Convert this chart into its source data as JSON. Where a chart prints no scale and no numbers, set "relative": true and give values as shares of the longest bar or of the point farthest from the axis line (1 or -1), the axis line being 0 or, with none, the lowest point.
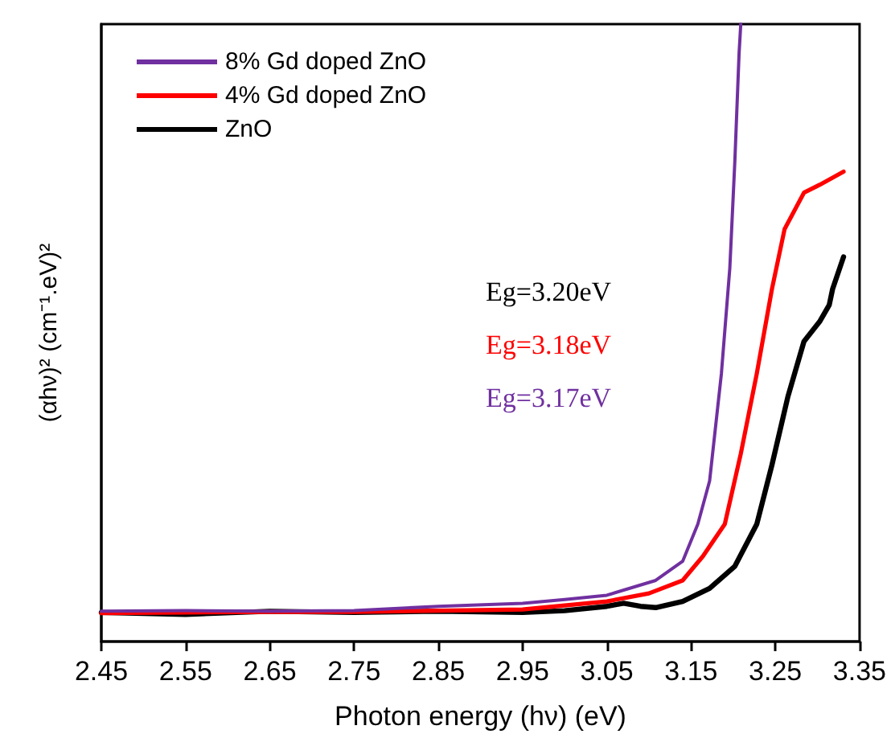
{
  "chart_data": {
    "type": "line",
    "xlabel": "Photon energy (hν) (eV)",
    "ylabel": "(αhν)² (cm⁻¹.eV)²",
    "relative": true,
    "xlim": [
      2.45,
      3.35
    ],
    "xticks": [
      2.45,
      2.55,
      2.65,
      2.75,
      2.85,
      2.95,
      3.05,
      3.15,
      3.25,
      3.35
    ],
    "grid": false,
    "legend": "top left",
    "marker": "none",
    "line_style": "solid",
    "series": [
      {
        "name": "8% Gd doped ZnO",
        "color": "#7030a0",
        "x": [
          2.45,
          2.55,
          2.65,
          2.75,
          2.85,
          2.95,
          3.0,
          3.05,
          3.108,
          3.14,
          3.158,
          3.172,
          3.186,
          3.196,
          3.202,
          3.207,
          3.209
        ],
        "values": [
          0.049,
          0.05,
          0.049,
          0.05,
          0.057,
          0.062,
          0.068,
          0.075,
          0.099,
          0.13,
          0.19,
          0.26,
          0.434,
          0.605,
          0.779,
          0.953,
          1.0
        ]
      },
      {
        "name": "4% Gd doped ZnO",
        "color": "#ff0000",
        "x": [
          2.45,
          2.55,
          2.65,
          2.75,
          2.85,
          2.95,
          3.05,
          3.1,
          3.14,
          3.164,
          3.19,
          3.209,
          3.228,
          3.246,
          3.261,
          3.284,
          3.303,
          3.331
        ],
        "values": [
          0.046,
          0.047,
          0.048,
          0.048,
          0.05,
          0.052,
          0.065,
          0.078,
          0.099,
          0.138,
          0.19,
          0.304,
          0.434,
          0.571,
          0.668,
          0.727,
          0.74,
          0.761
        ]
      },
      {
        "name": "ZnO",
        "color": "#000000",
        "x": [
          2.45,
          2.55,
          2.65,
          2.75,
          2.85,
          2.95,
          3.0,
          3.05,
          3.07,
          3.09,
          3.108,
          3.14,
          3.172,
          3.202,
          3.228,
          3.246,
          3.265,
          3.284,
          3.303,
          3.314,
          3.318,
          3.331
        ],
        "values": [
          0.047,
          0.044,
          0.049,
          0.047,
          0.049,
          0.047,
          0.05,
          0.057,
          0.062,
          0.057,
          0.055,
          0.065,
          0.086,
          0.122,
          0.19,
          0.286,
          0.397,
          0.486,
          0.519,
          0.545,
          0.571,
          0.623
        ]
      }
    ],
    "annotations": [
      "Eg=3.20eV",
      "Eg=3.18eV",
      "Eg=3.17eV"
    ]
  }
}
